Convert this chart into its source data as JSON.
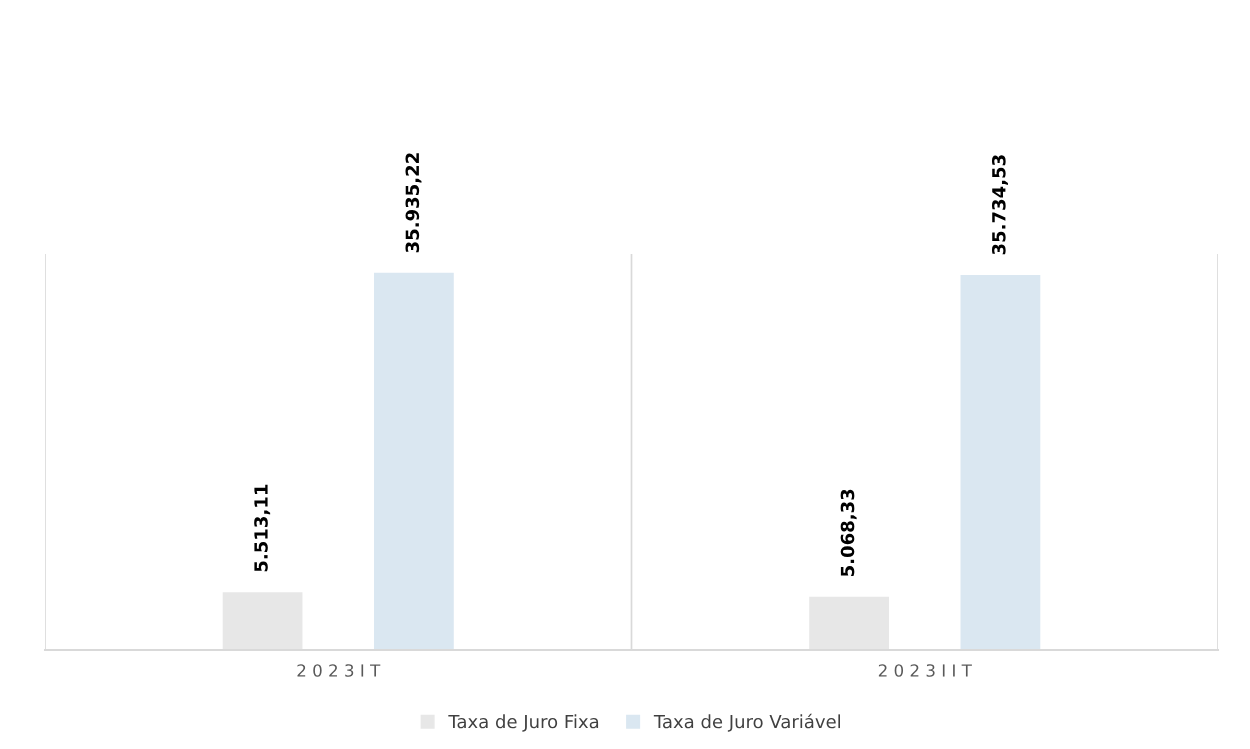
{
  "chart_data": {
    "type": "bar",
    "categories": [
      "2 0 2 3 I T",
      "2 0 2 3 I I T"
    ],
    "series": [
      {
        "name": "Taxa de Juro Fixa",
        "color": "#e7e7e7",
        "values": [
          5513.11,
          5068.33
        ],
        "value_labels": [
          "5.513,11",
          "5.068,33"
        ]
      },
      {
        "name": "Taxa de Juro Variável",
        "color": "#dae7f1",
        "values": [
          35935.22,
          35734.53
        ],
        "value_labels": [
          "35.935,22",
          "35.734,53"
        ]
      }
    ],
    "tick_labels": "x",
    "grid": "x",
    "legend": "bottom"
  }
}
